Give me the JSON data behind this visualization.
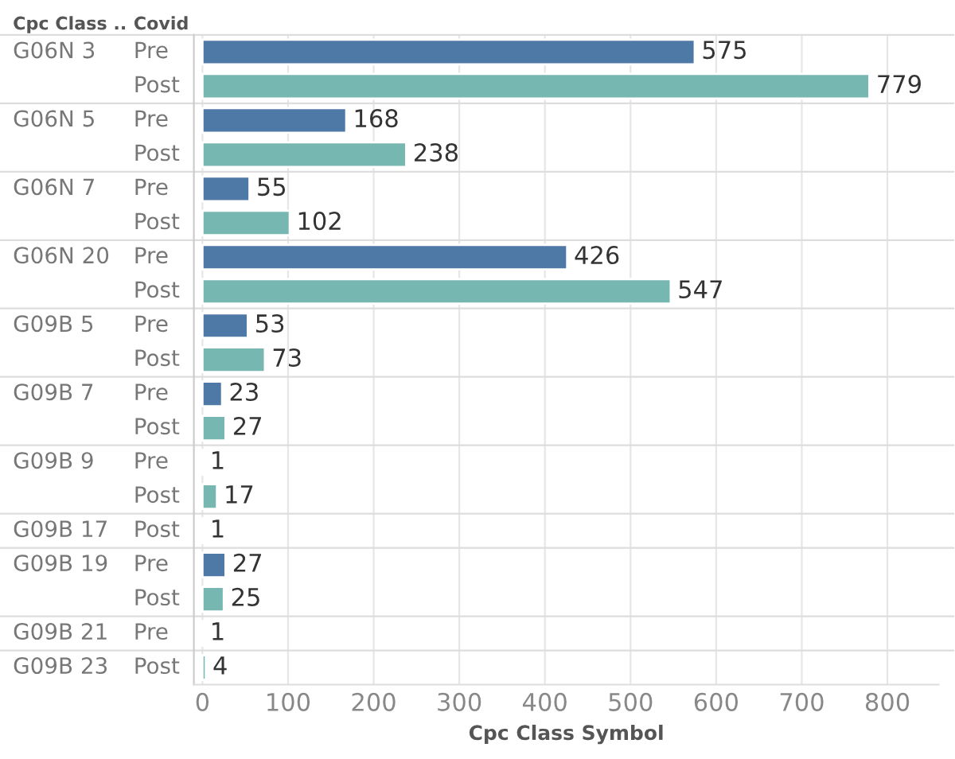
{
  "chart_data": {
    "type": "bar",
    "orientation": "horizontal",
    "ylabel": "Cpc Class ..",
    "xlabel": "Cpc Class Symbol",
    "annotations": [
      "Covid"
    ],
    "categories": [
      "G06N 3 Pre",
      "Post",
      "G06N 5 Pre",
      "Post",
      "G06N 7 Pre",
      "Post",
      "G06N 20 Pre",
      "Post",
      "G09B 5 Pre",
      "Post",
      "G09B 7 Pre",
      "Post",
      "G09B 9 Pre",
      "Post",
      "G09B 17 Post",
      "G09B 19 Pre",
      "Post",
      "G09B 21 Pre",
      "G09B 23 Post"
    ],
    "values": [
      575,
      779,
      168,
      238,
      55,
      102,
      426,
      547,
      53,
      73,
      23,
      27,
      1,
      17,
      1,
      27,
      25,
      1,
      4
    ],
    "colors": [
      "#4e79a7",
      "#76b7b2",
      "#4e79a7",
      "#76b7b2",
      "#4e79a7",
      "#76b7b2",
      "#4e79a7",
      "#76b7b2",
      "#4e79a7",
      "#76b7b2",
      "#4e79a7",
      "#76b7b2",
      "#4e79a7",
      "#76b7b2",
      "#76b7b2",
      "#4e79a7",
      "#76b7b2",
      "#4e79a7",
      "#76b7b2"
    ],
    "xlim": [
      -10,
      860
    ],
    "xticks": [
      0,
      100,
      200,
      300,
      400,
      500,
      600,
      700,
      800
    ],
    "grid": "x",
    "data_labels": true
  }
}
